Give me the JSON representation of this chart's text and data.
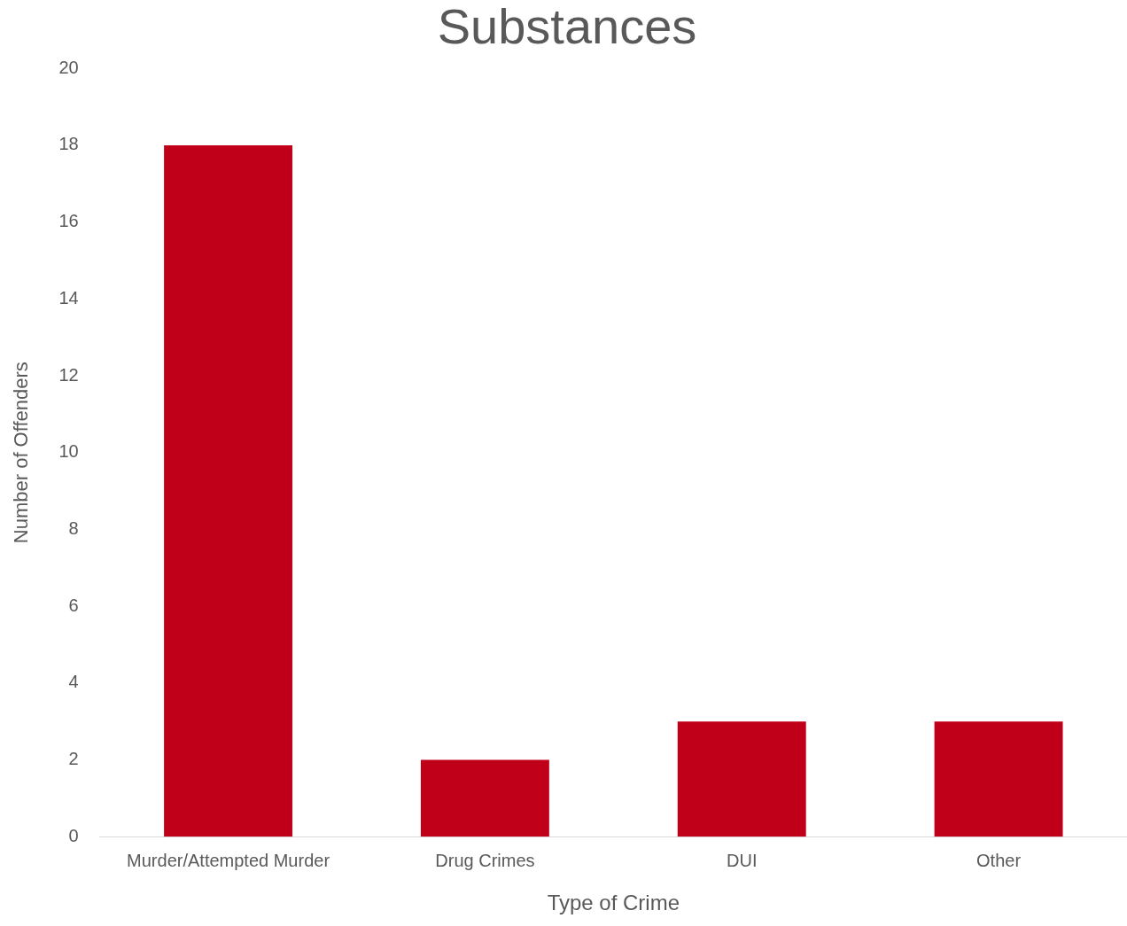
{
  "chart_data": {
    "type": "bar",
    "title": "Substances",
    "xlabel": "Type of Crime",
    "ylabel": "Number of Offenders",
    "categories": [
      "Murder/Attempted Murder",
      "Drug Crimes",
      "DUI",
      "Other"
    ],
    "values": [
      18,
      2,
      3,
      3
    ],
    "color": "#c00018",
    "ylim": [
      0,
      20
    ],
    "yticks": [
      0,
      2,
      4,
      6,
      8,
      10,
      12,
      14,
      16,
      18,
      20
    ],
    "grid": false
  }
}
